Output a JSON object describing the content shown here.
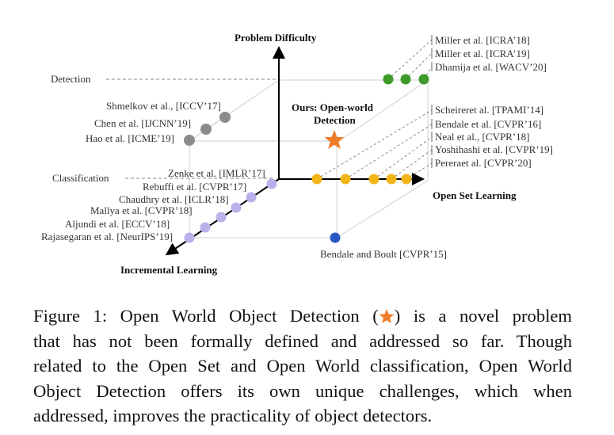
{
  "axes": {
    "vertical": "Problem Difficulty",
    "horizontal": "Open Set Learning",
    "depth": "Incremental Learning"
  },
  "levels": {
    "detection": "Detection",
    "classification": "Classification"
  },
  "ours": {
    "line1": "Ours: Open-world",
    "line2": "Detection"
  },
  "groups": {
    "open_world_detection": [
      "Miller et al. [ICRA’18]",
      "Miller et al. [ICRA’19]",
      "Dhamija et al. [WACV’20]"
    ],
    "open_set_classification": [
      "Scheireret al. [TPAMI’14]",
      "Bendale et al. [CVPR’16]",
      "Neal et al., [CVPR’18]",
      "Yoshihashi et al. [CVPR’19]",
      "Pereraet al. [CVPR’20]"
    ],
    "incremental_detection": [
      "Shmelkov et al., [ICCV’17]",
      "Chen et al. [IJCNN’19]",
      "Hao et al. [ICME’19]"
    ],
    "incremental_classification": [
      "Zenke et al. [IMLR’17]",
      "Rebuffi et al. [CVPR’17]",
      "Chaudhry et al. [ICLR’18]",
      "Mallya et al. [CVPR’18]",
      "Aljundi et al. [ECCV’18]",
      "Rajasegaran et al. [NeurIPS’19]"
    ],
    "open_world_classification": [
      "Bendale and Boult [CVPR’15]"
    ]
  },
  "caption": {
    "line1a": "Figure 1:  Open World Object Detection (",
    "line1b": ") is a novel problem",
    "line2": "that has not been formally defined and addressed so far.  Though",
    "line3": "related to the Open Set and Open World classification, Open World",
    "line4": "Object Detection offers its own unique challenges, which when",
    "line5": "addressed, improves the practicality of object detectors."
  },
  "colors": {
    "green": "#3d9a2a",
    "gold": "#f2b51a",
    "gray": "#8c8c8c",
    "lavender": "#b9b2ea",
    "blue": "#2a56c4",
    "star": "#ee7d2b"
  }
}
